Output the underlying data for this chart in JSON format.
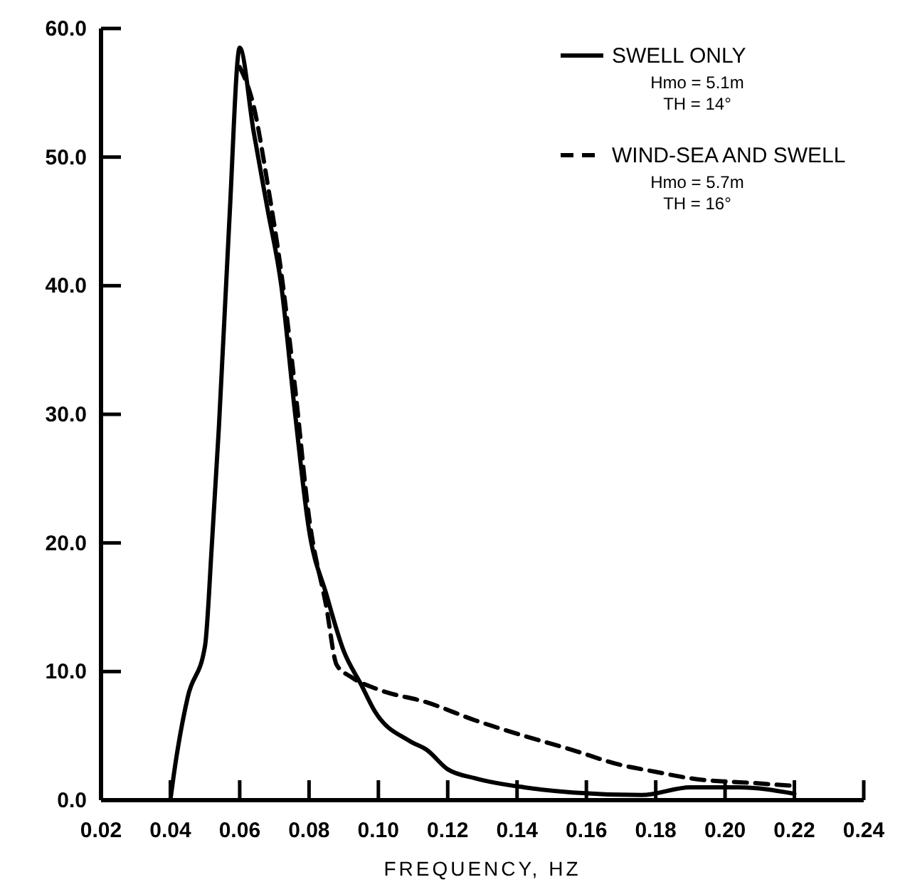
{
  "chart_data": {
    "type": "line",
    "xlabel": "FREQUENCY, HZ",
    "xlim": [
      0.02,
      0.24
    ],
    "ylim": [
      0,
      60
    ],
    "xticks": [
      0.02,
      0.04,
      0.06,
      0.08,
      {
        "value": 0.1,
        "label": "0.10"
      },
      0.12,
      0.14,
      0.16,
      0.18,
      {
        "value": 0.2,
        "label": "0.20"
      },
      0.22,
      0.24
    ],
    "yticks": [
      {
        "value": 0,
        "label": "0.0"
      },
      {
        "value": 10,
        "label": "10.0"
      },
      {
        "value": 20,
        "label": "20.0"
      },
      {
        "value": 30,
        "label": "30.0"
      },
      {
        "value": 40,
        "label": "40.0"
      },
      {
        "value": 50,
        "label": "50.0"
      },
      {
        "value": 60,
        "label": "60.0"
      }
    ],
    "grid": false,
    "legend": "top right",
    "marker": "none",
    "annotations": [
      "Hmo = 5.1m",
      "TH = 14°",
      "Hmo = 5.7m",
      "TH = 16°"
    ],
    "series": [
      {
        "name": "SWELL ONLY",
        "color": "#000000",
        "line_style": "solid",
        "x": [
          0.04,
          0.041,
          0.045,
          0.05,
          0.052,
          0.054,
          0.057,
          0.06,
          0.064,
          0.068,
          0.072,
          0.076,
          0.08,
          0.085,
          0.09,
          0.095,
          0.099,
          0.109,
          0.114,
          0.12,
          0.128,
          0.142,
          0.156,
          0.176,
          0.19,
          0.204,
          0.22
        ],
        "values": [
          0,
          2,
          8,
          12,
          20,
          29,
          45,
          58.5,
          52,
          46,
          40,
          30,
          21,
          16,
          11.6,
          9,
          6.9,
          4.6,
          3.9,
          2.4,
          1.7,
          1.0,
          0.6,
          0.4,
          1.0,
          1.0,
          0.5
        ]
      },
      {
        "name": "WIND-SEA AND SWELL",
        "color": "#000000",
        "line_style": "dashed",
        "x": [
          0.06,
          0.064,
          0.068,
          0.072,
          0.076,
          0.08,
          0.085,
          0.088,
          0.092,
          0.1,
          0.114,
          0.128,
          0.142,
          0.156,
          0.169,
          0.18,
          0.19,
          0.21,
          0.22
        ],
        "values": [
          57,
          54,
          48,
          41,
          32,
          22,
          15,
          10.5,
          9.6,
          8.6,
          7.6,
          6.2,
          5.0,
          3.9,
          2.8,
          2.2,
          1.7,
          1.3,
          1.1
        ]
      }
    ]
  }
}
